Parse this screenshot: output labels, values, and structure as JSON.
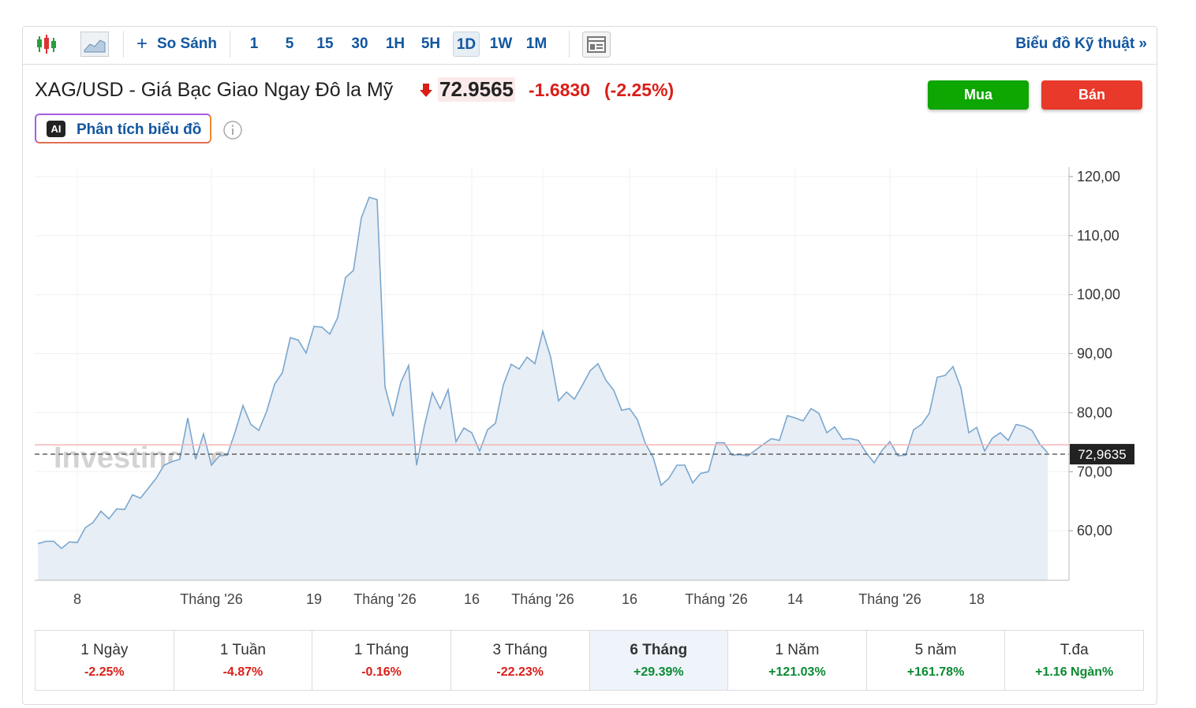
{
  "toolbar": {
    "compare": "So Sánh",
    "intervals": [
      "1",
      "5",
      "15",
      "30",
      "1H",
      "5H",
      "1D",
      "1W",
      "1M"
    ],
    "active_interval": "1D",
    "technical": "Biểu đồ Kỹ thuật »"
  },
  "header": {
    "title": "XAG/USD - Giá Bạc Giao Ngay Đô la Mỹ",
    "price": "72.9565",
    "change": "-1.6830",
    "change_pct": "(-2.25%)",
    "buy": "Mua",
    "sell": "Bán",
    "ai_icon": "AI",
    "ai_button": "Phân tích biểu đồ"
  },
  "chart_data": {
    "type": "area",
    "watermark": "Investing.com",
    "color": "#7aa7cf",
    "fill": "#e8eef5",
    "grid": true,
    "categories": [
      null,
      null,
      null,
      null,
      null,
      "8",
      null,
      null,
      null,
      null,
      null,
      null,
      null,
      null,
      null,
      null,
      null,
      null,
      null,
      null,
      null,
      null,
      "Tháng '26",
      null,
      null,
      null,
      null,
      null,
      null,
      null,
      null,
      null,
      null,
      null,
      null,
      "19",
      null,
      null,
      null,
      null,
      null,
      null,
      null,
      null,
      "Tháng '26",
      null,
      null,
      null,
      null,
      null,
      null,
      null,
      null,
      null,
      null,
      "16",
      null,
      null,
      null,
      null,
      null,
      null,
      null,
      null,
      "Tháng '26",
      null,
      null,
      null,
      null,
      null,
      null,
      null,
      null,
      null,
      null,
      "16",
      null,
      null,
      null,
      null,
      null,
      null,
      null,
      null,
      null,
      null,
      "Tháng '26",
      null,
      null,
      null,
      null,
      null,
      null,
      null,
      null,
      null,
      "14",
      null,
      null,
      null,
      null,
      null,
      null,
      null,
      null,
      null,
      null,
      null,
      "Tháng '26",
      null,
      null,
      null,
      null,
      null,
      null,
      null,
      null,
      null,
      null,
      "18",
      null,
      null,
      null,
      null,
      null,
      null,
      null,
      null,
      null
    ],
    "values": [
      57.8,
      58.2,
      58.2,
      57.0,
      58.1,
      58.0,
      60.5,
      61.4,
      63.3,
      62.0,
      63.7,
      63.6,
      66.1,
      65.5,
      67.2,
      68.9,
      71.1,
      71.7,
      72.1,
      79.1,
      72.1,
      76.4,
      71.1,
      72.7,
      72.8,
      76.7,
      81.2,
      78.0,
      77.0,
      80.2,
      84.8,
      86.8,
      92.7,
      92.3,
      90.1,
      94.6,
      94.5,
      93.3,
      96.1,
      102.9,
      104.1,
      113.0,
      116.5,
      116.1,
      84.4,
      79.4,
      85.1,
      88.0,
      71.1,
      77.8,
      83.4,
      80.7,
      83.9,
      75.1,
      77.4,
      76.6,
      73.5,
      77.1,
      78.2,
      84.7,
      88.2,
      87.4,
      89.4,
      88.3,
      93.8,
      89.4,
      82.0,
      83.5,
      82.3,
      84.6,
      87.1,
      88.3,
      85.5,
      83.8,
      80.4,
      80.7,
      78.8,
      74.8,
      72.4,
      67.7,
      68.9,
      71.1,
      71.1,
      68.1,
      69.7,
      70.0,
      74.9,
      74.9,
      72.8,
      72.9,
      72.7,
      73.7,
      74.7,
      75.6,
      75.3,
      79.5,
      79.1,
      78.6,
      80.7,
      79.9,
      76.6,
      77.6,
      75.5,
      75.6,
      75.3,
      73.2,
      71.5,
      73.6,
      75.1,
      72.7,
      72.8,
      77.1,
      78.0,
      79.9,
      86.0,
      86.3,
      87.8,
      84.2,
      76.6,
      77.5,
      73.5,
      75.7,
      76.6,
      75.3,
      78.0,
      77.7,
      77.0,
      74.7,
      73.2
    ],
    "ylim": [
      51.6,
      121.6
    ],
    "yticks": [
      {
        "value": 60,
        "label": "60,00"
      },
      {
        "value": 70,
        "label": "70,00"
      },
      {
        "value": 80,
        "label": "80,00"
      },
      {
        "value": 90,
        "label": "90,00"
      },
      {
        "value": 100,
        "label": "100,00"
      },
      {
        "value": 110,
        "label": "110,00"
      },
      {
        "value": 120,
        "label": "120,00"
      }
    ],
    "reference_line": {
      "value": 74.55,
      "color": "#f5b5b5"
    },
    "last_price": {
      "value": 72.9635,
      "label": "72,9635"
    }
  },
  "periods": [
    {
      "name": "1 Ngày",
      "change": "-2.25%"
    },
    {
      "name": "1 Tuần",
      "change": "-4.87%"
    },
    {
      "name": "1 Tháng",
      "change": "-0.16%"
    },
    {
      "name": "3 Tháng",
      "change": "-22.23%"
    },
    {
      "name": "6 Tháng",
      "change": "+29.39%"
    },
    {
      "name": "1 Năm",
      "change": "+121.03%"
    },
    {
      "name": "5 năm",
      "change": "+161.78%"
    },
    {
      "name": "T.đa",
      "change": "+1.16 Ngàn%"
    }
  ],
  "active_period": "6 Tháng"
}
